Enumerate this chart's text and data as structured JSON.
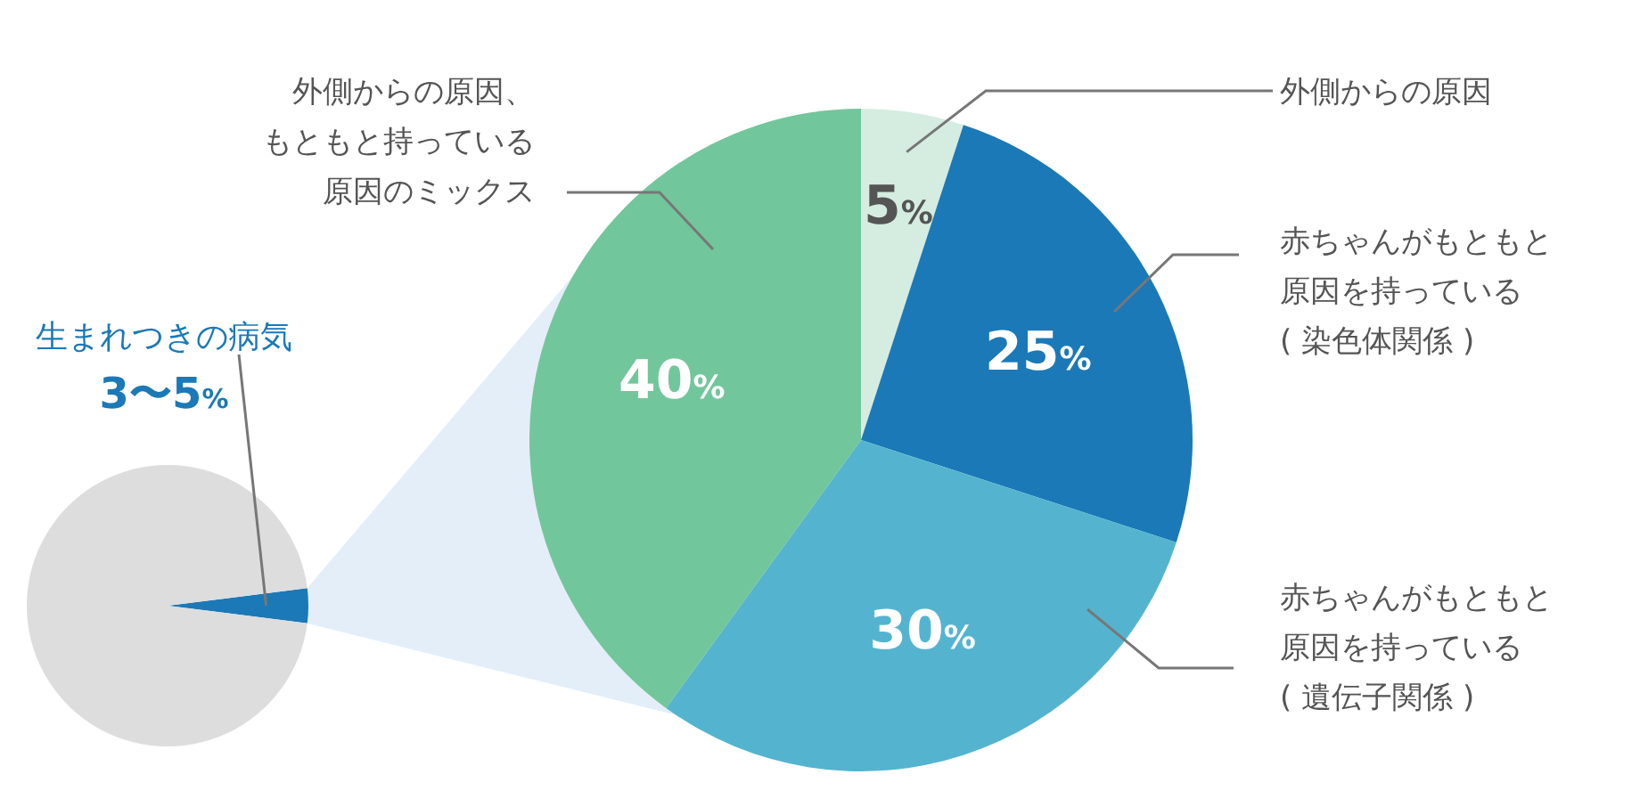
{
  "chart_data": [
    {
      "type": "pie",
      "categories": [
        "生まれつきの病気",
        null
      ],
      "values": [
        4,
        96
      ],
      "colors": [
        "#1b79b7",
        "#dddddd"
      ],
      "annotations": [
        "3〜5%"
      ]
    },
    {
      "type": "pie",
      "categories": [
        "外側からの原因",
        "赤ちゃんがもともと原因を持っている( 染色体関係 )",
        "赤ちゃんがもともと原因を持っている( 遺伝子関係 )",
        "外側からの原因、もともと持っている原因のミックス"
      ],
      "values": [
        5,
        25,
        30,
        40
      ],
      "colors": [
        "#d5ede0",
        "#1b79b7",
        "#54b4cf",
        "#72c69b"
      ],
      "value_labels": [
        "5%",
        "25%",
        "30%",
        "40%"
      ]
    }
  ]
}
